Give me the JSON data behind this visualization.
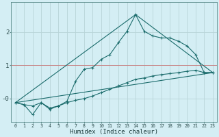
{
  "xlabel": "Humidex (Indice chaleur)",
  "background_color": "#d4eef4",
  "grid_color": "#b8d4d8",
  "line_color": "#1a6b6b",
  "xlim": [
    -0.5,
    23.5
  ],
  "ylim": [
    -0.7,
    2.9
  ],
  "xticks": [
    0,
    1,
    2,
    3,
    4,
    5,
    6,
    7,
    8,
    9,
    10,
    11,
    12,
    13,
    14,
    15,
    16,
    17,
    18,
    19,
    20,
    21,
    22,
    23
  ],
  "yticks": [
    0,
    1,
    2
  ],
  "ytick_labels": [
    "-0",
    "1",
    "2"
  ],
  "line1_x": [
    0,
    1,
    2,
    3,
    4,
    5,
    6,
    7,
    8,
    9,
    10,
    11,
    12,
    13,
    14,
    15,
    16,
    17,
    18,
    19,
    20,
    21,
    22,
    23
  ],
  "line1_y": [
    -0.12,
    -0.18,
    -0.48,
    -0.12,
    -0.32,
    -0.22,
    -0.08,
    0.52,
    0.88,
    0.93,
    1.18,
    1.32,
    1.68,
    2.02,
    2.52,
    2.02,
    1.88,
    1.82,
    1.82,
    1.72,
    1.58,
    1.32,
    0.78,
    0.78
  ],
  "line2_x": [
    0,
    1,
    2,
    3,
    4,
    5,
    6,
    7,
    8,
    9,
    10,
    11,
    12,
    13,
    14,
    15,
    16,
    17,
    18,
    19,
    20,
    21,
    22,
    23
  ],
  "line2_y": [
    -0.12,
    -0.18,
    -0.22,
    -0.12,
    -0.28,
    -0.22,
    -0.12,
    -0.05,
    0.0,
    0.08,
    0.18,
    0.28,
    0.38,
    0.48,
    0.58,
    0.62,
    0.68,
    0.72,
    0.75,
    0.78,
    0.82,
    0.85,
    0.78,
    0.78
  ],
  "line3_x": [
    0,
    23
  ],
  "line3_y": [
    -0.12,
    0.78
  ],
  "line4_x": [
    0,
    14,
    23
  ],
  "line4_y": [
    -0.12,
    2.52,
    0.78
  ]
}
